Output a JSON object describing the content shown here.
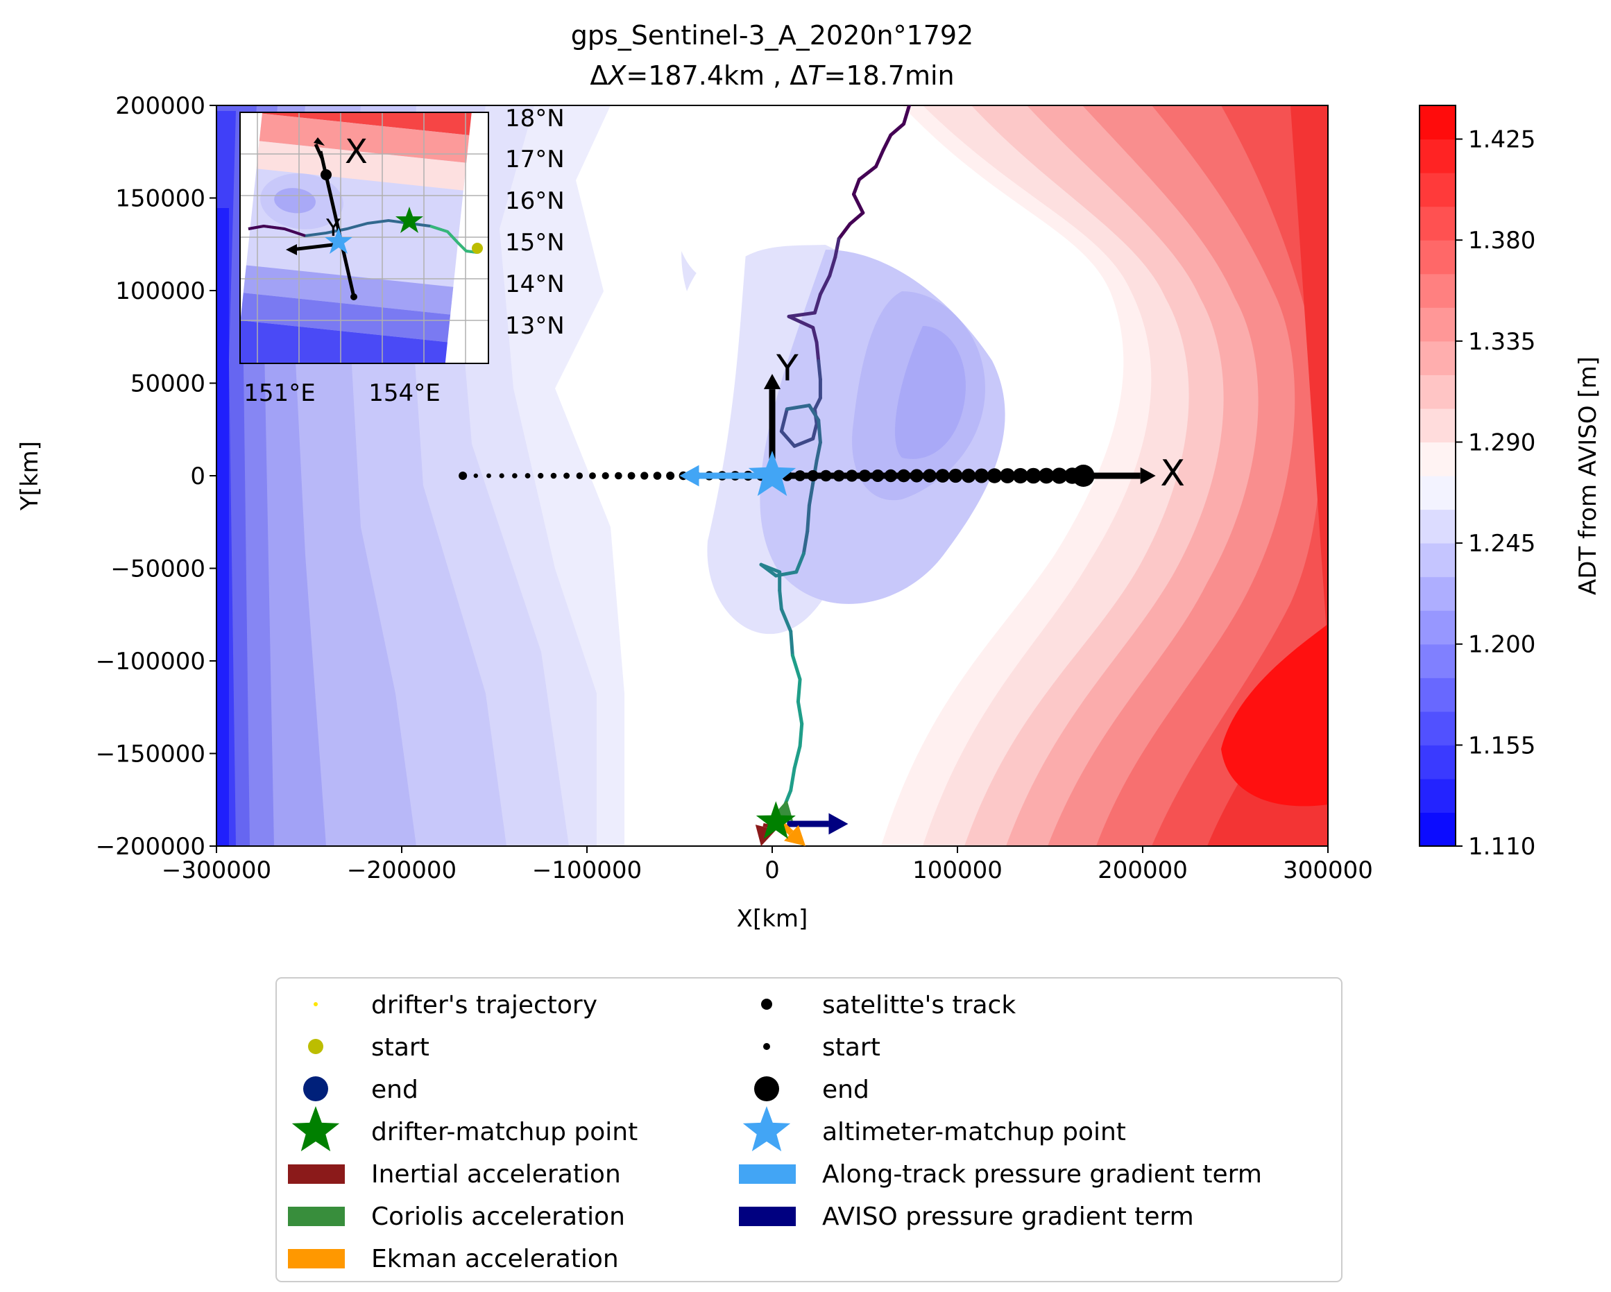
{
  "chart_data": {
    "type": "contour",
    "title": "gps_Sentinel-3_A_2020n°1792",
    "subtitle": "ΔX=187.4km , ΔT=18.7min",
    "subtitle_parts": {
      "dx_sym": "Δ",
      "dx_var": "X",
      "dx_val": "=187.4km , ",
      "dt_sym": "Δ",
      "dt_var": "T",
      "dt_val": "=18.7min"
    },
    "xlabel": "X[km]",
    "ylabel": "Y[km]",
    "xlim": [
      -300000,
      300000
    ],
    "ylim": [
      -200000,
      200000
    ],
    "x_ticks": [
      -300000,
      -200000,
      -100000,
      0,
      100000,
      200000,
      300000
    ],
    "x_tick_labels": [
      "−300000",
      "−200000",
      "−100000",
      "0",
      "100000",
      "200000",
      "300000"
    ],
    "y_ticks": [
      -200000,
      -150000,
      -100000,
      -50000,
      0,
      50000,
      100000,
      150000,
      200000
    ],
    "y_tick_labels": [
      "−200000",
      "−150000",
      "−100000",
      "−50000",
      "0",
      "50000",
      "100000",
      "150000",
      "200000"
    ],
    "colorbar": {
      "label": "ADT from AVISO [m]",
      "range": [
        1.11,
        1.44
      ],
      "ticks": [
        1.11,
        1.155,
        1.2,
        1.245,
        1.29,
        1.335,
        1.38,
        1.425
      ],
      "tick_labels": [
        "1.110",
        "1.155",
        "1.200",
        "1.245",
        "1.290",
        "1.335",
        "1.380",
        "1.425"
      ],
      "low_color": "#0000ff",
      "mid_color": "#ffffff",
      "high_color": "#ff0000"
    },
    "satellite_track": {
      "start": [
        -167000,
        0
      ],
      "end": [
        168000,
        0
      ],
      "points_x": [
        -167000,
        -160000,
        -153000,
        -146000,
        -139000,
        -132000,
        -125000,
        -118000,
        -111000,
        -104000,
        -97000,
        -90000,
        -83000,
        -76000,
        -69000,
        -62000,
        -55000,
        -48000,
        -41000,
        -34000,
        -27000,
        -20000,
        -13000,
        -6000,
        1000,
        8000,
        15000,
        22000,
        29000,
        36000,
        43000,
        50000,
        57000,
        64000,
        71000,
        78000,
        85000,
        92000,
        99000,
        106000,
        113000,
        120000,
        127000,
        134000,
        141000,
        148000,
        155000,
        162000,
        168000
      ]
    },
    "drifter_trajectory": {
      "points": [
        [
          74000,
          200000
        ],
        [
          71000,
          190000
        ],
        [
          64000,
          184000
        ],
        [
          60000,
          176000
        ],
        [
          56000,
          167000
        ],
        [
          47000,
          160000
        ],
        [
          44000,
          152000
        ],
        [
          49000,
          142000
        ],
        [
          42000,
          136000
        ],
        [
          36000,
          128000
        ],
        [
          34000,
          118000
        ],
        [
          31000,
          108000
        ],
        [
          26000,
          98000
        ],
        [
          23000,
          88000
        ],
        [
          9000,
          86000
        ],
        [
          22000,
          80000
        ],
        [
          24000,
          72000
        ],
        [
          25000,
          62000
        ],
        [
          26000,
          52000
        ],
        [
          26000,
          42000
        ],
        [
          23000,
          36000
        ],
        [
          24000,
          28000
        ],
        [
          22000,
          20000
        ],
        [
          12000,
          16000
        ],
        [
          5000,
          24000
        ],
        [
          8000,
          36000
        ],
        [
          20000,
          38000
        ],
        [
          25000,
          30000
        ],
        [
          26000,
          18000
        ],
        [
          24000,
          8000
        ],
        [
          22000,
          -4000
        ],
        [
          20000,
          -16000
        ],
        [
          19000,
          -30000
        ],
        [
          17000,
          -42000
        ],
        [
          13000,
          -52000
        ],
        [
          2000,
          -54000
        ],
        [
          -6000,
          -48000
        ],
        [
          4000,
          -52000
        ],
        [
          4000,
          -62000
        ],
        [
          5000,
          -72000
        ],
        [
          10000,
          -84000
        ],
        [
          11000,
          -97000
        ],
        [
          15000,
          -110000
        ],
        [
          14000,
          -122000
        ],
        [
          16000,
          -134000
        ],
        [
          15000,
          -146000
        ],
        [
          12000,
          -158000
        ],
        [
          10000,
          -170000
        ],
        [
          6000,
          -180000
        ],
        [
          4000,
          -190000
        ]
      ],
      "colors": [
        "#440154",
        "#482878",
        "#3e4989",
        "#31688e",
        "#26828e",
        "#1f9e89",
        "#35b779",
        "#6ece58",
        "#b5de2b"
      ]
    },
    "altimeter_matchup": [
      0,
      0
    ],
    "drifter_matchup": [
      2000,
      -187000
    ],
    "vectors": [
      {
        "name": "Along-track pressure gradient term",
        "from": [
          0,
          0
        ],
        "to": [
          -50000,
          0
        ],
        "color": "#42a5f5"
      },
      {
        "name": "track-axis-X",
        "from": [
          0,
          0
        ],
        "to": [
          207000,
          0
        ],
        "color": "#000000"
      },
      {
        "name": "track-axis-Y",
        "from": [
          0,
          0
        ],
        "to": [
          0,
          55000
        ],
        "color": "#000000"
      },
      {
        "name": "AVISO pressure gradient term",
        "from": [
          8000,
          -188000
        ],
        "to": [
          41000,
          -188000
        ],
        "color": "#000080"
      },
      {
        "name": "Inertial acceleration",
        "from": [
          -3000,
          -188000
        ],
        "to": [
          -6000,
          -200000
        ],
        "color": "#8b1a1a"
      },
      {
        "name": "Coriolis acceleration",
        "from": [
          5000,
          -188000
        ],
        "to": [
          8000,
          -175000
        ],
        "color": "#388e3c"
      },
      {
        "name": "Ekman acceleration",
        "from": [
          5000,
          -188000
        ],
        "to": [
          18000,
          -200000
        ],
        "color": "#ff9800"
      }
    ],
    "axis_letters": {
      "x": "X",
      "y": "Y"
    },
    "inset": {
      "lon_tick_labels": [
        "151°E",
        "154°E"
      ],
      "lat_tick_labels": [
        "18°N",
        "17°N",
        "16°N",
        "15°N",
        "14°N",
        "13°N"
      ]
    },
    "legend": {
      "placement": "bottom-center",
      "entries": [
        {
          "label": "drifter's trajectory",
          "marker": "small-dot",
          "color": "#ffe600"
        },
        {
          "label": "satelitte's track",
          "marker": "dot",
          "color": "#000000"
        },
        {
          "label": "start",
          "marker": "dot",
          "color": "#bcbd00"
        },
        {
          "label": "start",
          "marker": "small-dot",
          "color": "#000000"
        },
        {
          "label": "end",
          "marker": "big-dot",
          "color": "#00207a"
        },
        {
          "label": "end",
          "marker": "big-dot",
          "color": "#000000"
        },
        {
          "label": "drifter-matchup point",
          "marker": "star",
          "color": "#008000"
        },
        {
          "label": "altimeter-matchup point",
          "marker": "star",
          "color": "#42a5f5"
        },
        {
          "label": "Inertial acceleration",
          "marker": "patch",
          "color": "#8b1a1a"
        },
        {
          "label": "Along-track pressure gradient term",
          "marker": "patch",
          "color": "#42a5f5"
        },
        {
          "label": "Coriolis acceleration",
          "marker": "patch",
          "color": "#388e3c"
        },
        {
          "label": "AVISO pressure gradient term",
          "marker": "patch",
          "color": "#000080"
        },
        {
          "label": "Ekman acceleration",
          "marker": "patch",
          "color": "#ff9800"
        }
      ]
    }
  }
}
